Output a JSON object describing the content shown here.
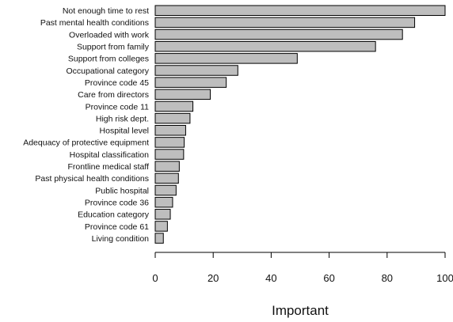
{
  "chart_data": {
    "type": "bar",
    "orientation": "horizontal",
    "title": "",
    "xlabel": "Important",
    "ylabel": "",
    "xlim": [
      0,
      100
    ],
    "xticks": [
      0,
      20,
      40,
      60,
      80,
      100
    ],
    "grid": false,
    "categories": [
      "Not enough time to rest",
      "Past mental health conditions",
      "Overloaded with work",
      "Support from family",
      "Support from colleges",
      "Occupational category",
      "Province code 45",
      "Care from directors",
      "Province code 11",
      "High risk dept.",
      "Hospital level",
      "Adequacy of protective equipment",
      "Hospital classification",
      "Frontline medical staff",
      "Past physical health conditions",
      "Public hospital",
      "Province code 36",
      "Education category",
      "Province code 61",
      "Living condition"
    ],
    "values": [
      100,
      89.5,
      85.3,
      76,
      49,
      28.5,
      24.5,
      19,
      13,
      12,
      10.5,
      10,
      9.8,
      8.3,
      8,
      7.2,
      6,
      5.2,
      4.2,
      2.8
    ],
    "colors": {
      "bar_fill": "#bebebe",
      "bar_stroke": "#000000"
    }
  }
}
